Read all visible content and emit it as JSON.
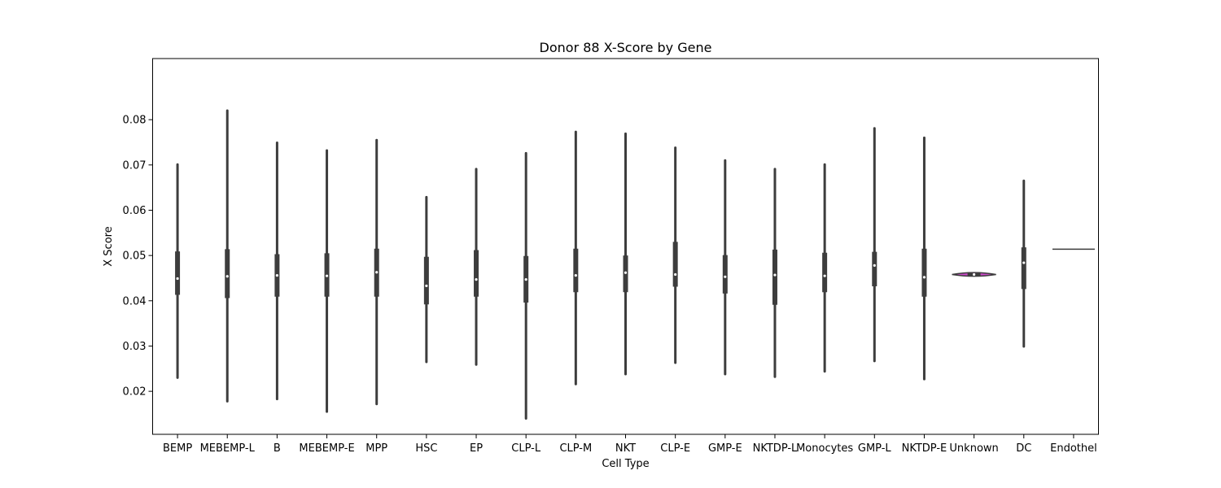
{
  "chart_data": {
    "type": "violin",
    "title": "Donor 88 X-Score by Gene",
    "xlabel": "Cell Type",
    "ylabel": "X Score",
    "ylim": [
      0.0105,
      0.0935
    ],
    "yticks": [
      "0.02",
      "0.03",
      "0.04",
      "0.05",
      "0.06",
      "0.07",
      "0.08"
    ],
    "grid": false,
    "colors": {
      "violin": "#3d3d3d",
      "highlight": "#c94ac7",
      "median": "#ffffff"
    },
    "categories": [
      "BEMP",
      "MEBEMP-L",
      "B",
      "MEBEMP-E",
      "MPP",
      "HSC",
      "EP",
      "CLP-L",
      "CLP-M",
      "NKT",
      "CLP-E",
      "GMP-E",
      "NKTDP-L",
      "Monocytes",
      "GMP-L",
      "NKTDP-E",
      "Unknown",
      "DC",
      "Endothel"
    ],
    "series": [
      {
        "category": "BEMP",
        "min": 0.023,
        "q1": 0.0413,
        "median": 0.0449,
        "q3": 0.0509,
        "max": 0.0701
      },
      {
        "category": "MEBEMP-L",
        "min": 0.0178,
        "q1": 0.0406,
        "median": 0.0454,
        "q3": 0.0514,
        "max": 0.082
      },
      {
        "category": "B",
        "min": 0.0183,
        "q1": 0.0409,
        "median": 0.0456,
        "q3": 0.0503,
        "max": 0.0749
      },
      {
        "category": "MEBEMP-E",
        "min": 0.0155,
        "q1": 0.0409,
        "median": 0.0455,
        "q3": 0.0505,
        "max": 0.0732
      },
      {
        "category": "MPP",
        "min": 0.0172,
        "q1": 0.0409,
        "median": 0.0463,
        "q3": 0.0515,
        "max": 0.0755
      },
      {
        "category": "HSC",
        "min": 0.0265,
        "q1": 0.0392,
        "median": 0.0433,
        "q3": 0.0497,
        "max": 0.0629
      },
      {
        "category": "EP",
        "min": 0.0259,
        "q1": 0.0409,
        "median": 0.0447,
        "q3": 0.0512,
        "max": 0.0691
      },
      {
        "category": "CLP-L",
        "min": 0.014,
        "q1": 0.0396,
        "median": 0.0447,
        "q3": 0.0499,
        "max": 0.0726
      },
      {
        "category": "CLP-M",
        "min": 0.0216,
        "q1": 0.0419,
        "median": 0.0456,
        "q3": 0.0515,
        "max": 0.0773
      },
      {
        "category": "NKT",
        "min": 0.0238,
        "q1": 0.0419,
        "median": 0.0462,
        "q3": 0.05,
        "max": 0.0769
      },
      {
        "category": "CLP-E",
        "min": 0.0263,
        "q1": 0.0431,
        "median": 0.0458,
        "q3": 0.053,
        "max": 0.0738
      },
      {
        "category": "GMP-E",
        "min": 0.0238,
        "q1": 0.0416,
        "median": 0.0453,
        "q3": 0.0501,
        "max": 0.071
      },
      {
        "category": "NKTDP-L",
        "min": 0.0232,
        "q1": 0.0391,
        "median": 0.0457,
        "q3": 0.0513,
        "max": 0.0691
      },
      {
        "category": "Monocytes",
        "min": 0.0244,
        "q1": 0.0419,
        "median": 0.0455,
        "q3": 0.0506,
        "max": 0.0701
      },
      {
        "category": "GMP-L",
        "min": 0.0267,
        "q1": 0.0432,
        "median": 0.0478,
        "q3": 0.0508,
        "max": 0.0781
      },
      {
        "category": "NKTDP-E",
        "min": 0.0227,
        "q1": 0.0409,
        "median": 0.0452,
        "q3": 0.0515,
        "max": 0.076
      },
      {
        "category": "Unknown",
        "min": 0.0454,
        "q1": 0.0456,
        "median": 0.0458,
        "q3": 0.0461,
        "max": 0.0463
      },
      {
        "category": "DC",
        "min": 0.0299,
        "q1": 0.0426,
        "median": 0.0484,
        "q3": 0.0518,
        "max": 0.0665
      },
      {
        "category": "Endothel",
        "min": 0.0514,
        "q1": 0.0514,
        "median": 0.0514,
        "q3": 0.0514,
        "max": 0.0514
      }
    ]
  }
}
